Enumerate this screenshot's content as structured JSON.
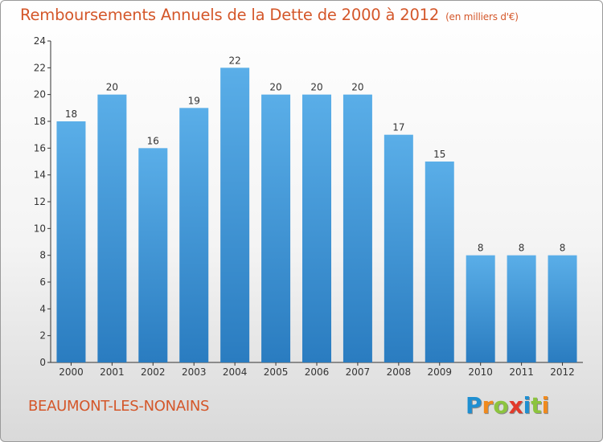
{
  "title": "Remboursements Annuels de la Dette de 2000 à 2012",
  "subtitle": "(en milliers d'€)",
  "location": "BEAUMONT-LES-NONAINS",
  "logo": {
    "text": "Proxiti",
    "letters": [
      {
        "char": "P",
        "color": "#1f8fd1"
      },
      {
        "char": "r",
        "color": "#f08a1e"
      },
      {
        "char": "o",
        "color": "#8cc43e"
      },
      {
        "char": "x",
        "color": "#e23a2a"
      },
      {
        "char": "i",
        "color": "#1f8fd1"
      },
      {
        "char": "t",
        "color": "#8cc43e"
      },
      {
        "char": "i",
        "color": "#f08a1e"
      }
    ]
  },
  "colors": {
    "accent": "#d4572a",
    "bar_top": "#5aaee8",
    "bar_bottom": "#2a7cc0"
  },
  "chart_data": {
    "type": "bar",
    "title": "Remboursements Annuels de la Dette de 2000 à 2012",
    "subtitle": "(en milliers d'€)",
    "xlabel": "",
    "ylabel": "",
    "categories": [
      "2000",
      "2001",
      "2002",
      "2003",
      "2004",
      "2005",
      "2006",
      "2007",
      "2008",
      "2009",
      "2010",
      "2011",
      "2012"
    ],
    "values": [
      18,
      20,
      16,
      19,
      22,
      20,
      20,
      20,
      17,
      15,
      8,
      8,
      8
    ],
    "ylim": [
      0,
      24
    ],
    "yticks": [
      0,
      2,
      4,
      6,
      8,
      10,
      12,
      14,
      16,
      18,
      20,
      22,
      24
    ],
    "grid": false,
    "legend": "none"
  }
}
